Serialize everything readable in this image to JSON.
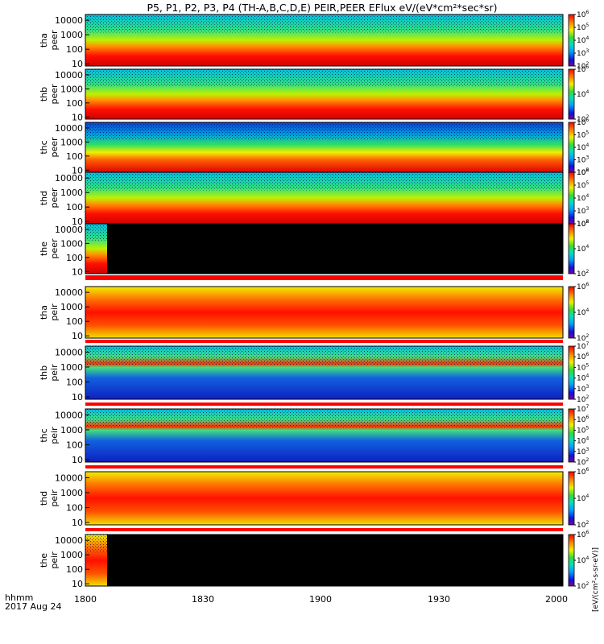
{
  "title": "P5, P1, P2, P3, P4 (TH-A,B,C,D,E) PEIR,PEER EFlux eV/(eV*cm²*sec*sr)",
  "colorbar_label": "[eV/(cm²-s-sr-eV)]",
  "x_axis": {
    "ticks": [
      "1800",
      "1830",
      "1900",
      "1930",
      "2000"
    ],
    "label_line1": "hhmm",
    "label_line2": "2017 Aug 24",
    "range": [
      "18:00",
      "20:00"
    ]
  },
  "chart_data": {
    "type": "heatmap",
    "x_range": [
      "18:00",
      "20:00"
    ],
    "y_scale": "log",
    "y_ticks": [
      "10000",
      "1000",
      "100",
      "10"
    ],
    "panels": [
      {
        "probe": "tha",
        "species": "peer",
        "ylim": [
          7,
          25000
        ],
        "cbar_max": 6,
        "cbar_min": 2,
        "cbar_ticks": [
          6,
          5,
          4,
          3,
          2
        ]
      },
      {
        "probe": "thb",
        "species": "peer",
        "ylim": [
          7,
          25000
        ],
        "cbar_max": 6,
        "cbar_min": 2,
        "cbar_ticks": [
          6,
          4,
          2
        ]
      },
      {
        "probe": "thc",
        "species": "peer",
        "ylim": [
          7,
          25000
        ],
        "cbar_max": 6,
        "cbar_min": 2,
        "cbar_ticks": [
          6,
          5,
          4,
          3,
          2
        ]
      },
      {
        "probe": "thd",
        "species": "peer",
        "ylim": [
          7,
          25000
        ],
        "cbar_max": 6,
        "cbar_min": 2,
        "cbar_ticks": [
          6,
          5,
          4,
          3,
          2
        ]
      },
      {
        "probe": "the",
        "species": "peer",
        "ylim": [
          7,
          25000
        ],
        "cbar_max": 6,
        "cbar_min": 2,
        "cbar_ticks": [
          6,
          4,
          2
        ]
      },
      {
        "probe": "tha",
        "species": "peir",
        "ylim": [
          7,
          25000
        ],
        "cbar_max": 6,
        "cbar_min": 2,
        "cbar_ticks": [
          6,
          4,
          2
        ]
      },
      {
        "probe": "thb",
        "species": "peir",
        "ylim": [
          7,
          25000
        ],
        "cbar_max": 7,
        "cbar_min": 2,
        "cbar_ticks": [
          7,
          6,
          5,
          4,
          3,
          2
        ]
      },
      {
        "probe": "thc",
        "species": "peir",
        "ylim": [
          7,
          25000
        ],
        "cbar_max": 7,
        "cbar_min": 2,
        "cbar_ticks": [
          7,
          6,
          5,
          4,
          3,
          2
        ]
      },
      {
        "probe": "thd",
        "species": "peir",
        "ylim": [
          7,
          25000
        ],
        "cbar_max": 6,
        "cbar_min": 2,
        "cbar_ticks": [
          6,
          4,
          2
        ]
      },
      {
        "probe": "the",
        "species": "peir",
        "ylim": [
          7,
          25000
        ],
        "cbar_max": 6,
        "cbar_min": 2,
        "cbar_ticks": [
          6,
          4,
          2
        ]
      }
    ]
  }
}
